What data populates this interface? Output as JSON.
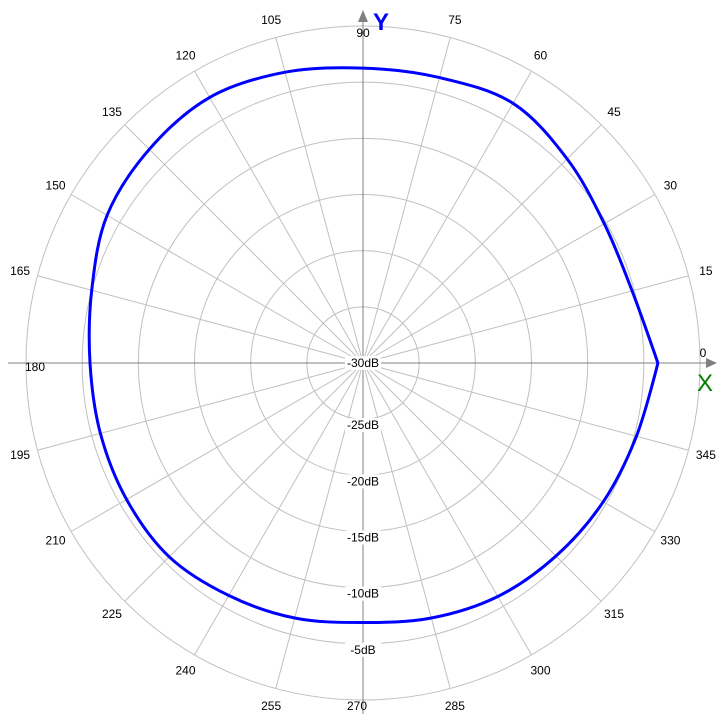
{
  "chart_data": {
    "type": "polar-line",
    "title": "",
    "angle_unit": "degrees",
    "angle_ticks": [
      0,
      15,
      30,
      45,
      60,
      75,
      90,
      105,
      120,
      135,
      150,
      165,
      180,
      195,
      210,
      225,
      240,
      255,
      270,
      285,
      300,
      315,
      330,
      345
    ],
    "radial_range_db": [
      -30,
      0
    ],
    "radial_ticks": [
      -30,
      -25,
      -20,
      -15,
      -10,
      -5,
      0
    ],
    "radial_tick_labels": [
      "-30dB",
      "-25dB",
      "-20dB",
      "-15dB",
      "-10dB",
      "-5dB"
    ],
    "grid": true,
    "axis_labels": {
      "y": "Y",
      "x": "X"
    },
    "colors": {
      "series": "#0000ff",
      "grid": "#c0c0c0",
      "axis": "#808080",
      "y_marker": "#0000ff",
      "x_marker": "#008000"
    },
    "series": [
      {
        "angles": [
          0,
          15,
          30,
          45,
          60,
          75,
          90,
          105,
          120,
          135,
          150,
          165,
          180,
          195,
          210,
          225,
          240,
          255,
          270,
          285,
          300,
          315,
          330,
          345
        ],
        "values_db": [
          -3.75,
          -5.2,
          -5.2,
          -4.3,
          -3.3,
          -3.7,
          -3.75,
          -3.2,
          -2.7,
          -3.1,
          -3.7,
          -5.0,
          -5.7,
          -5.8,
          -5.7,
          -5.6,
          -6.1,
          -6.5,
          -6.9,
          -6.5,
          -6.0,
          -5.7,
          -5.3,
          -4.8
        ]
      }
    ]
  }
}
